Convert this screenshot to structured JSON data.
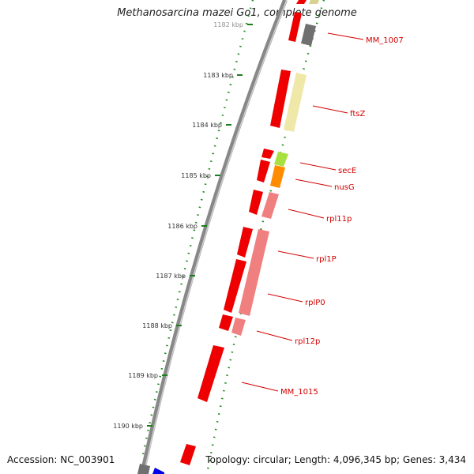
{
  "title": "Methanosarcina mazei Go1, complete genome",
  "accession": "Accession: NC_003901",
  "topology": "Topology: circular; Length: 4,096,345 bp; Genes: 3,434",
  "ticks": [
    "1182 kbp",
    "1183 kbp",
    "1184 kbp",
    "1185 kbp",
    "1186 kbp",
    "1187 kbp",
    "1188 kbp",
    "1189 kbp",
    "1190 kbp"
  ],
  "genes": [
    {
      "name": "MM_1007"
    },
    {
      "name": "ftsZ"
    },
    {
      "name": "secE"
    },
    {
      "name": "nusG"
    },
    {
      "name": "rpl11p"
    },
    {
      "name": "rpl1P"
    },
    {
      "name": "rplP0"
    },
    {
      "name": "rpl12p"
    },
    {
      "name": "MM_1015"
    }
  ],
  "colors": {
    "strand_forward": "#ee0000",
    "gene_gray": "#707070",
    "gene_yellow": "#f0e8a8",
    "gene_lightgreen": "#a8e040",
    "gene_orange": "#ff8c00",
    "gene_pink": "#f08080",
    "gene_blue": "#0000ee",
    "tick_green": "#1a7f1a",
    "label_red": "#d40000"
  }
}
